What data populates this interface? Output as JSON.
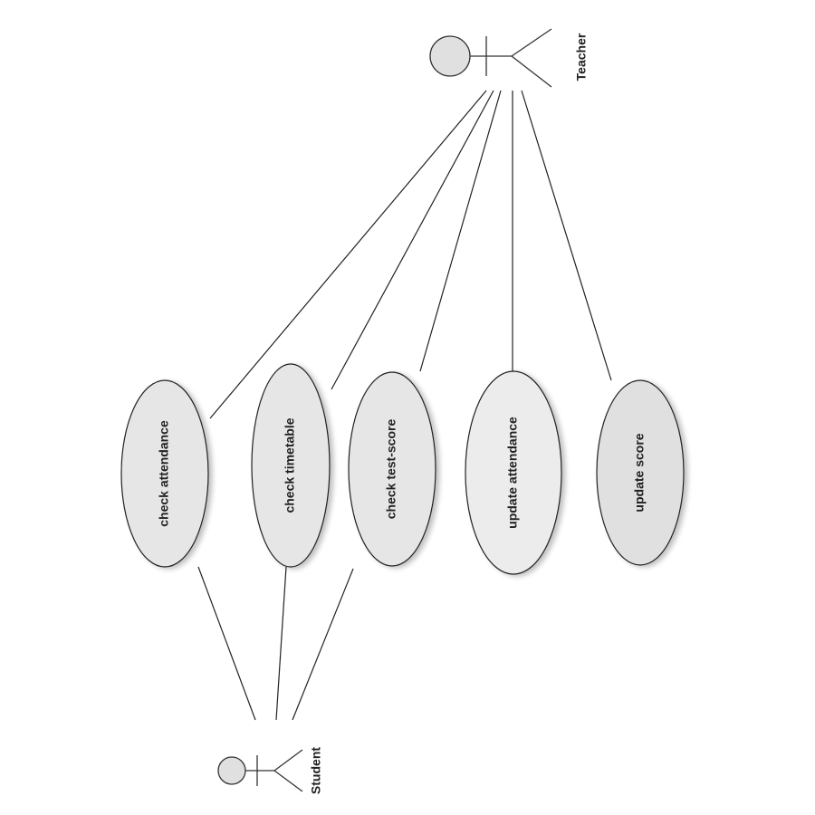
{
  "diagram": {
    "actors": {
      "teacher": {
        "label": "Teacher"
      },
      "student": {
        "label": "Student"
      }
    },
    "use_cases": {
      "check_attendance": {
        "label": "check attendance"
      },
      "check_timetable": {
        "label": "check timetable"
      },
      "check_test_score": {
        "label": "check test-score"
      },
      "update_attendance": {
        "label": "update attendance"
      },
      "update_score": {
        "label": "update score"
      }
    },
    "associations": [
      {
        "actor": "Teacher",
        "use_case": "check attendance"
      },
      {
        "actor": "Teacher",
        "use_case": "check timetable"
      },
      {
        "actor": "Teacher",
        "use_case": "check test-score"
      },
      {
        "actor": "Teacher",
        "use_case": "update attendance"
      },
      {
        "actor": "Teacher",
        "use_case": "update score"
      },
      {
        "actor": "Student",
        "use_case": "check attendance"
      },
      {
        "actor": "Student",
        "use_case": "check timetable"
      },
      {
        "actor": "Student",
        "use_case": "check test-score"
      }
    ],
    "colors": {
      "use_case_fill": "#e6e6e6",
      "use_case_fill_light": "#ececec",
      "actor_head_fill": "#e0e0e0",
      "line": "#222222"
    }
  }
}
